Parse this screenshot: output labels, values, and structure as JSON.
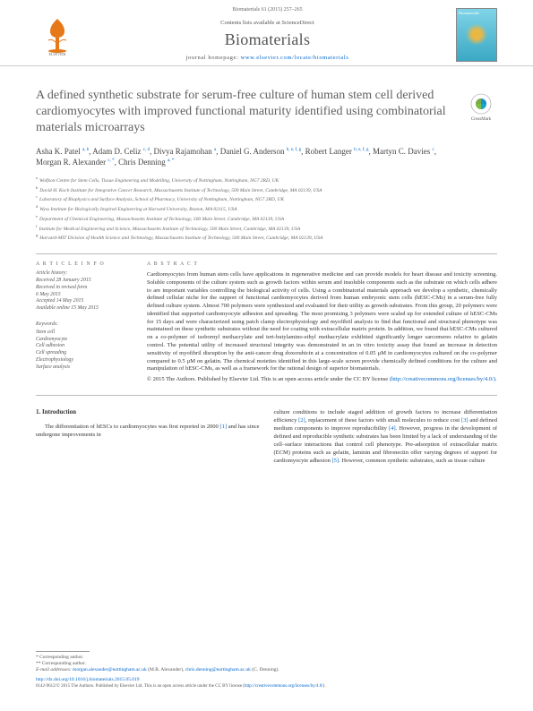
{
  "header": {
    "citation": "Biomaterials 61 (2015) 257–265",
    "contents_prefix": "Contents lists available at ",
    "contents_link": "ScienceDirect",
    "journal": "Biomaterials",
    "homepage_prefix": "journal homepage: ",
    "homepage_url": "www.elsevier.com/locate/biomaterials",
    "cover_label": "Biomaterials"
  },
  "article": {
    "title": "A defined synthetic substrate for serum-free culture of human stem cell derived cardiomyocytes with improved functional maturity identified using combinatorial materials microarrays",
    "crossmark_label": "CrossMark",
    "authors": [
      {
        "name": "Asha K. Patel",
        "aff": "a, b"
      },
      {
        "name": "Adam D. Celiz",
        "aff": "c, d"
      },
      {
        "name": "Divya Rajamohan",
        "aff": "a"
      },
      {
        "name": "Daniel G. Anderson",
        "aff": "b, e, f, g"
      },
      {
        "name": "Robert Langer",
        "aff": "b, e, f, g"
      },
      {
        "name": "Martyn C. Davies",
        "aff": "c"
      },
      {
        "name": "Morgan R. Alexander",
        "aff": "c, *"
      },
      {
        "name": "Chris Denning",
        "aff": "a, *"
      }
    ],
    "affiliations": [
      {
        "sup": "a",
        "text": "Wolfson Centre for Stem Cells, Tissue Engineering and Modelling, University of Nottingham, Nottingham, NG7 2RD, UK"
      },
      {
        "sup": "b",
        "text": "David H. Koch Institute for Integrative Cancer Research, Massachusetts Institute of Technology, 500 Main Street, Cambridge, MA 02139, USA"
      },
      {
        "sup": "c",
        "text": "Laboratory of Biophysics and Surface Analysis, School of Pharmacy, University of Nottingham, Nottingham, NG7 2RD, UK"
      },
      {
        "sup": "d",
        "text": "Wyss Institute for Biologically Inspired Engineering at Harvard University, Boston, MA 02115, USA"
      },
      {
        "sup": "e",
        "text": "Department of Chemical Engineering, Massachusetts Institute of Technology, 500 Main Street, Cambridge, MA 02139, USA"
      },
      {
        "sup": "f",
        "text": "Institute for Medical Engineering and Science, Massachusetts Institute of Technology, 500 Main Street, Cambridge, MA 02139, USA"
      },
      {
        "sup": "g",
        "text": "Harvard-MIT Division of Health Science and Technology, Massachusetts Institute of Technology, 500 Main Street, Cambridge, MA 02139, USA"
      }
    ]
  },
  "info": {
    "article_info_heading": "A R T I C L E   I N F O",
    "history_heading": "Article history:",
    "history": [
      "Received 28 January 2015",
      "Received in revised form",
      "6 May 2015",
      "Accepted 14 May 2015",
      "Available online 15 May 2015"
    ],
    "keywords_heading": "Keywords:",
    "keywords": [
      "Stem cell",
      "Cardiomyocyte",
      "Cell adhesion",
      "Cell spreading",
      "Electrophysiology",
      "Surface analysis"
    ]
  },
  "abstract": {
    "heading": "A B S T R A C T",
    "text": "Cardiomyocytes from human stem cells have applications in regenerative medicine and can provide models for heart disease and toxicity screening. Soluble components of the culture system such as growth factors within serum and insoluble components such as the substrate on which cells adhere to are important variables controlling the biological activity of cells. Using a combinatorial materials approach we develop a synthetic, chemically defined cellular niche for the support of functional cardiomyocytes derived from human embryonic stem cells (hESC-CMs) in a serum-free fully defined culture system. Almost 700 polymers were synthesized and evaluated for their utility as growth substrates. From this group, 20 polymers were identified that supported cardiomyocyte adhesion and spreading. The most promising 3 polymers were scaled up for extended culture of hESC-CMs for 15 days and were characterized using patch clamp electrophysiology and myofibril analysis to find that functional and structural phenotype was maintained on these synthetic substrates without the need for coating with extracellular matrix protein. In addition, we found that hESC-CMs cultured on a co-polymer of isobornyl methacrylate and tert-butylamino-ethyl methacrylate exhibited significantly longer sarcomeres relative to gelatin control. The potential utility of increased structural integrity was demonstrated in an in vitro toxicity assay that found an increase in detection sensitivity of myofibril disruption by the anti-cancer drug doxorubicin at a concentration of 0.05 µM in cardiomyocytes cultured on the co-polymer compared to 0.5 µM on gelatin. The chemical moieties identified in this large-scale screen provide chemically defined conditions for the culture and manipulation of hESC-CMs, as well as a framework for the rational design of superior biomaterials.",
    "copyright": "© 2015 The Authors. Published by Elsevier Ltd. This is an open access article under the CC BY license",
    "license_url": "(http://creativecommons.org/licenses/by/4.0/)."
  },
  "body": {
    "section_number": "1.",
    "section_title": "Introduction",
    "col1_p1_a": "The differentiation of hESCs to cardiomyocytes was first reported in 2000 ",
    "col1_p1_ref": "[1]",
    "col1_p1_b": " and has since undergone improvements in",
    "col2_a": "culture conditions to include staged addition of growth factors to increase differentiation efficiency ",
    "col2_ref1": "[2]",
    "col2_b": ", replacement of these factors with small molecules to reduce cost ",
    "col2_ref2": "[3]",
    "col2_c": " and defined medium components to improve reproducibility ",
    "col2_ref3": "[4]",
    "col2_d": ". However, progress in the development of defined and reproducible synthetic substrates has been limited by a lack of understanding of the cell–surface interactions that control cell phenotype. Pre-adsorption of extracellular matrix (ECM) proteins such as gelatin, laminin and fibronectin offer varying degrees of support for cardiomyocyte adhesion ",
    "col2_ref4": "[5]",
    "col2_e": ". However, common synthetic substrates, such as tissue culture"
  },
  "footnotes": {
    "corr": "* Corresponding author.",
    "corr2": "** Corresponding author.",
    "email_label": "E-mail addresses: ",
    "email1": "morgan.alexander@nottingham.ac.uk",
    "email1_name": " (M.R. Alexander), ",
    "email2": "chris.denning@nottingham.ac.uk",
    "email2_name": " (C. Denning).",
    "doi": "http://dx.doi.org/10.1016/j.biomaterials.2015.05.019",
    "oa_line": "0142-9612/© 2015 The Authors. Published by Elsevier Ltd. This is an open access article under the CC BY license (",
    "oa_url": "http://creativecommons.org/licenses/by/4.0/",
    "oa_close": ")."
  },
  "colors": {
    "link": "#0066cc",
    "text": "#333333",
    "heading": "#606060",
    "rule": "#bbbbbb"
  }
}
